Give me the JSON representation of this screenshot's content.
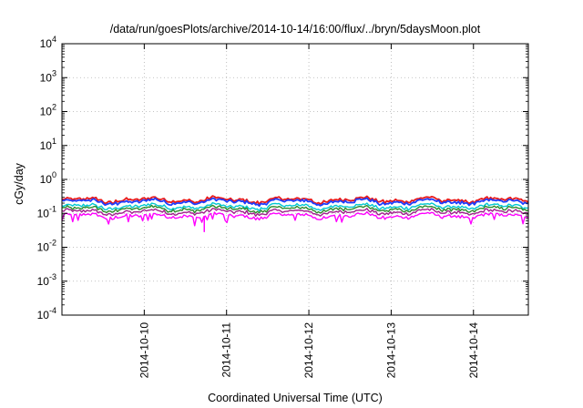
{
  "chart_data": {
    "type": "line",
    "title": "/data/run/goesPlots/archive/2014-10-14/16:00/flux/../bryn/5daysMoon.plot",
    "xlabel": "Coordinated Universal Time (UTC)",
    "ylabel": "cGy/day",
    "y_scale": "log",
    "ylim": [
      0.0001,
      10000
    ],
    "y_ticks": [
      {
        "base": "10",
        "exp": "4"
      },
      {
        "base": "10",
        "exp": "3"
      },
      {
        "base": "10",
        "exp": "2"
      },
      {
        "base": "10",
        "exp": "1"
      },
      {
        "base": "10",
        "exp": "0"
      },
      {
        "base": "10",
        "exp": "-1"
      },
      {
        "base": "10",
        "exp": "-2"
      },
      {
        "base": "10",
        "exp": "-3"
      },
      {
        "base": "10",
        "exp": "-4"
      }
    ],
    "x_range": [
      "2014-10-09 00:00",
      "2014-10-14 16:00"
    ],
    "x_ticks": [
      "2014-10-10",
      "2014-10-11",
      "2014-10-12",
      "2014-10-13",
      "2014-10-14"
    ],
    "grid": true,
    "series": [
      {
        "color": "#e8191a",
        "level": 0.25
      },
      {
        "color": "#1e3cff",
        "level": 0.22
      },
      {
        "color": "#00c8d0",
        "level": 0.16
      },
      {
        "color": "#2e8b2e",
        "level": 0.135
      },
      {
        "color": "#a0208c",
        "level": 0.11
      },
      {
        "color": "#ff00ff",
        "level": 0.085
      }
    ]
  }
}
